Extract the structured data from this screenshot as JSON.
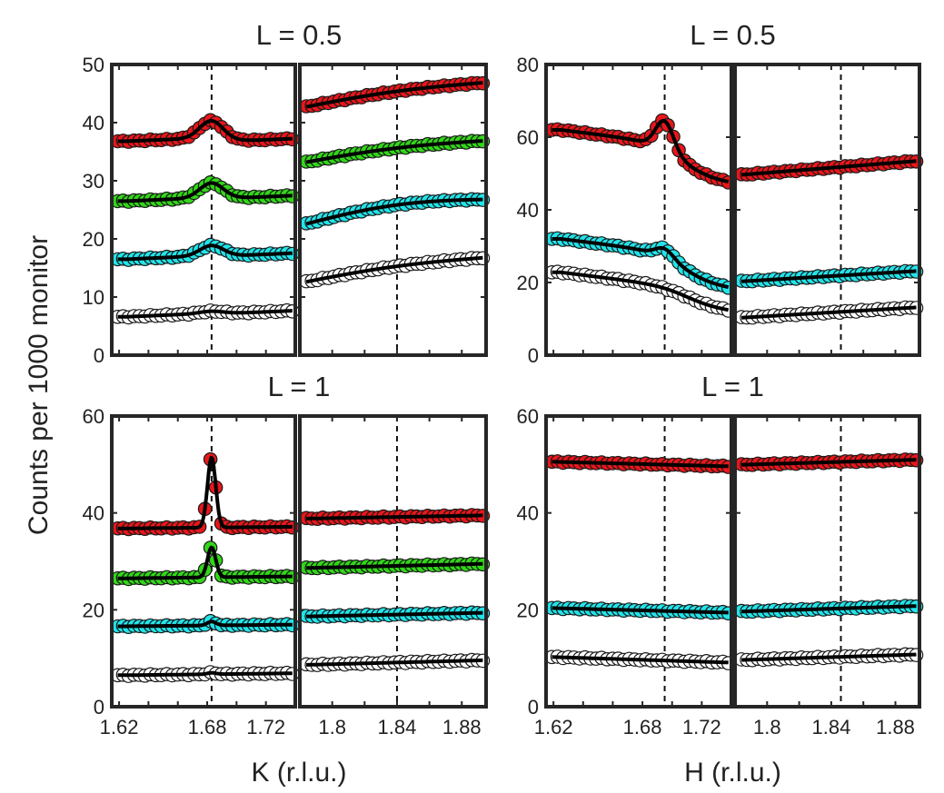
{
  "figure": {
    "ylabel": "Counts per 1000 monitor",
    "colors": {
      "red": "#e8161b",
      "green": "#33d61a",
      "cyan": "#22e4ea",
      "white": "#ffffff",
      "fit": "#000000",
      "frame": "#262626"
    }
  },
  "chart_data": [
    {
      "type": "scatter",
      "panel": "top-left",
      "title": "L = 0.5",
      "xlabel": "",
      "ylabel": "Counts per 1000 monitor",
      "ylim": [
        0,
        50
      ],
      "yticks": [
        0,
        10,
        20,
        30,
        40,
        50
      ],
      "ytick_labels": [
        "0",
        "10",
        "20",
        "30",
        "40",
        "50"
      ],
      "segments": [
        {
          "xlim": [
            1.615,
            1.74
          ],
          "xticks": [
            1.62,
            1.68,
            1.72
          ],
          "xtick_labels": [
            "1.62",
            "1.68",
            "1.72"
          ],
          "vline": 1.683,
          "series": [
            {
              "name": "red",
              "color": "#e8161b",
              "baseline": 36.8,
              "slope": 22,
              "peak_center": 1.683,
              "peak_amp": 3.2,
              "peak_width": 0.008,
              "tail_center": 1.686,
              "tail_drop": 0.8,
              "tail_width": 0.008
            },
            {
              "name": "green",
              "color": "#33d61a",
              "baseline": 26.5,
              "slope": 22,
              "peak_center": 1.683,
              "peak_amp": 2.6,
              "peak_width": 0.008,
              "tail_center": 1.686,
              "tail_drop": 0.3,
              "tail_width": 0.008
            },
            {
              "name": "cyan",
              "color": "#22e4ea",
              "baseline": 16.5,
              "slope": 22,
              "peak_center": 1.683,
              "peak_amp": 1.8,
              "peak_width": 0.008,
              "tail_center": 1.686,
              "tail_drop": 0.2,
              "tail_width": 0.008
            },
            {
              "name": "white",
              "color": "#ffffff",
              "baseline": 6.6,
              "slope": 22,
              "peak_center": 1.683,
              "peak_amp": 0.4,
              "peak_width": 0.008,
              "tail_center": 1.686,
              "tail_drop": 0.2,
              "tail_width": 0.008
            }
          ]
        },
        {
          "xlim": [
            1.78,
            1.895
          ],
          "xticks": [
            1.8,
            1.84,
            1.88
          ],
          "xtick_labels": [
            "1.8",
            "1.84",
            "1.88"
          ],
          "vline": 1.84,
          "series": [
            {
              "name": "red",
              "color": "#e8161b",
              "start": 42.5,
              "end": 46.9,
              "curve": 0.6
            },
            {
              "name": "green",
              "color": "#33d61a",
              "start": 33,
              "end": 36.9,
              "curve": 0.6
            },
            {
              "name": "cyan",
              "color": "#22e4ea",
              "start": 22.3,
              "end": 26.8,
              "curve": 1.2
            },
            {
              "name": "white",
              "color": "#ffffff",
              "start": 12.4,
              "end": 16.8,
              "curve": 0.6
            }
          ]
        }
      ]
    },
    {
      "type": "scatter",
      "panel": "top-right",
      "title": "L = 0.5",
      "xlabel": "",
      "ylabel": "",
      "ylim": [
        0,
        80
      ],
      "yticks": [
        0,
        20,
        40,
        60,
        80
      ],
      "ytick_labels": [
        "0",
        "20",
        "40",
        "60",
        "80"
      ],
      "segments": [
        {
          "xlim": [
            1.615,
            1.74
          ],
          "xticks": [
            1.62,
            1.68,
            1.72
          ],
          "xtick_labels": [
            "1.62",
            "1.68",
            "1.72"
          ],
          "vline": 1.695,
          "series": [
            {
              "name": "red",
              "color": "#e8161b",
              "baseline": 62,
              "slope": -100,
              "peak_center": 1.695,
              "peak_amp": 8,
              "peak_width": 0.006,
              "tail_center": 1.707,
              "tail_drop": 9,
              "tail_width": 0.01
            },
            {
              "name": "cyan",
              "color": "#22e4ea",
              "baseline": 32,
              "slope": -100,
              "peak_center": 1.695,
              "peak_amp": 2.5,
              "peak_width": 0.006,
              "tail_center": 1.708,
              "tail_drop": 8,
              "tail_width": 0.01
            },
            {
              "name": "white",
              "color": "#ffffff",
              "baseline": 22.8,
              "slope": -100,
              "peak_center": 1.695,
              "peak_amp": 0,
              "peak_width": 0.006,
              "tail_center": 1.71,
              "tail_drop": 5,
              "tail_width": 0.01
            }
          ]
        },
        {
          "xlim": [
            1.78,
            1.895
          ],
          "xticks": [
            1.8,
            1.84,
            1.88
          ],
          "xtick_labels": [
            "1.8",
            "1.84",
            "1.88"
          ],
          "vline": 1.846,
          "series": [
            {
              "name": "red",
              "color": "#e8161b",
              "start": 49.5,
              "end": 53.5,
              "curve": 0
            },
            {
              "name": "cyan",
              "color": "#22e4ea",
              "start": 20.2,
              "end": 23.2,
              "curve": 0
            },
            {
              "name": "white",
              "color": "#ffffff",
              "start": 10.2,
              "end": 13.2,
              "curve": 0
            }
          ]
        }
      ]
    },
    {
      "type": "scatter",
      "panel": "bottom-left",
      "title": "L = 1",
      "xlabel": "K (r.l.u.)",
      "ylabel": "",
      "ylim": [
        0,
        60
      ],
      "yticks": [
        0,
        20,
        40,
        60
      ],
      "ytick_labels": [
        "0",
        "20",
        "40",
        "60"
      ],
      "segments": [
        {
          "xlim": [
            1.615,
            1.74
          ],
          "xticks": [
            1.62,
            1.68,
            1.72
          ],
          "xtick_labels": [
            "1.62",
            "1.68",
            "1.72"
          ],
          "vline": 1.683,
          "series": [
            {
              "name": "red",
              "color": "#e8161b",
              "baseline": 36.8,
              "slope": 6,
              "peak_center": 1.683,
              "peak_amp": 14.5,
              "peak_width": 0.0028,
              "tail_center": 1.683,
              "tail_drop": 0,
              "tail_width": 0.01
            },
            {
              "name": "green",
              "color": "#33d61a",
              "baseline": 26.5,
              "slope": 7,
              "peak_center": 1.683,
              "peak_amp": 6.2,
              "peak_width": 0.0028,
              "tail_center": 1.683,
              "tail_drop": 0,
              "tail_width": 0.01
            },
            {
              "name": "cyan",
              "color": "#22e4ea",
              "baseline": 16.6,
              "slope": 6,
              "peak_center": 1.683,
              "peak_amp": 0.8,
              "peak_width": 0.003,
              "tail_center": 1.683,
              "tail_drop": 0,
              "tail_width": 0.01
            },
            {
              "name": "white",
              "color": "#ffffff",
              "baseline": 6.5,
              "slope": 7,
              "peak_center": 1.683,
              "peak_amp": 0.3,
              "peak_width": 0.003,
              "tail_center": 1.683,
              "tail_drop": 0,
              "tail_width": 0.01
            }
          ]
        },
        {
          "xlim": [
            1.78,
            1.895
          ],
          "xticks": [
            1.8,
            1.84,
            1.88
          ],
          "xtick_labels": [
            "1.8",
            "1.84",
            "1.88"
          ],
          "vline": 1.84,
          "series": [
            {
              "name": "red",
              "color": "#e8161b",
              "start": 38.8,
              "end": 39.5,
              "curve": 0
            },
            {
              "name": "green",
              "color": "#33d61a",
              "start": 28.6,
              "end": 29.5,
              "curve": 0
            },
            {
              "name": "cyan",
              "color": "#22e4ea",
              "start": 18.6,
              "end": 19.4,
              "curve": 0
            },
            {
              "name": "white",
              "color": "#ffffff",
              "start": 8.6,
              "end": 9.6,
              "curve": 0
            }
          ]
        }
      ]
    },
    {
      "type": "scatter",
      "panel": "bottom-right",
      "title": "L = 1",
      "xlabel": "H (r.l.u.)",
      "ylabel": "",
      "ylim": [
        0,
        60
      ],
      "yticks": [
        0,
        20,
        40,
        60
      ],
      "ytick_labels": [
        "0",
        "20",
        "40",
        "60"
      ],
      "segments": [
        {
          "xlim": [
            1.615,
            1.74
          ],
          "xticks": [
            1.62,
            1.68,
            1.72
          ],
          "xtick_labels": [
            "1.62",
            "1.68",
            "1.72"
          ],
          "vline": 1.695,
          "series": [
            {
              "name": "red",
              "color": "#e8161b",
              "start": 50.6,
              "end": 49.6,
              "curve": 0
            },
            {
              "name": "cyan",
              "color": "#22e4ea",
              "start": 20.4,
              "end": 19.4,
              "curve": 0
            },
            {
              "name": "white",
              "color": "#ffffff",
              "start": 10.3,
              "end": 9.1,
              "curve": 0
            }
          ]
        },
        {
          "xlim": [
            1.78,
            1.895
          ],
          "xticks": [
            1.8,
            1.84,
            1.88
          ],
          "xtick_labels": [
            "1.8",
            "1.84",
            "1.88"
          ],
          "vline": 1.846,
          "series": [
            {
              "name": "red",
              "color": "#e8161b",
              "start": 49.9,
              "end": 51,
              "curve": 0
            },
            {
              "name": "cyan",
              "color": "#22e4ea",
              "start": 19.6,
              "end": 20.8,
              "curve": 0
            },
            {
              "name": "white",
              "color": "#ffffff",
              "start": 9.6,
              "end": 10.8,
              "curve": 0
            }
          ]
        }
      ]
    }
  ]
}
